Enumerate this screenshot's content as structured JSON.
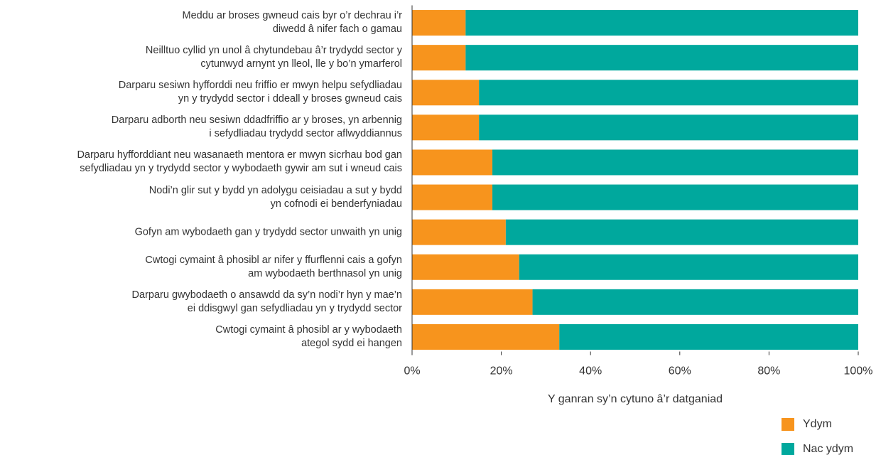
{
  "chart_data": {
    "type": "stacked_bar_horizontal",
    "categories": [
      "Meddu ar broses gwneud cais byr o’r dechrau i’r\ndiwedd â nifer fach o gamau",
      "Neilltuo cyllid yn unol â chytundebau â’r trydydd sector y\ncytunwyd arnynt yn lleol, lle y bo’n ymarferol",
      "Darparu sesiwn hyfforddi neu friffio er mwyn helpu sefydliadau\nyn y trydydd sector i ddeall y broses gwneud cais",
      "Darparu adborth neu sesiwn ddadfriffio ar y broses, yn arbennig\ni sefydliadau trydydd sector aflwyddiannus",
      "Darparu hyfforddiant neu wasanaeth mentora er mwyn sicrhau bod gan\nsefydliadau yn y trydydd sector y wybodaeth gywir am sut i wneud cais",
      "Nodi’n glir sut y bydd yn adolygu ceisiadau a sut y bydd\nyn cofnodi ei benderfyniadau",
      "Gofyn am wybodaeth gan y trydydd sector unwaith yn unig",
      "Cwtogi cymaint â phosibl ar nifer y ffurflenni cais a gofyn\nam wybodaeth berthnasol yn unig",
      "Darparu gwybodaeth o ansawdd da sy’n nodi’r hyn y mae’n\nei ddisgwyl gan sefydliadau yn y trydydd sector",
      "Cwtogi cymaint â phosibl ar y wybodaeth\nategol sydd ei hangen"
    ],
    "series": [
      {
        "name": "Ydym",
        "color": "#f7941d",
        "values": [
          12,
          12,
          15,
          15,
          18,
          18,
          21,
          24,
          27,
          33
        ]
      },
      {
        "name": "Nac ydym",
        "color": "#00a89d",
        "values": [
          88,
          88,
          85,
          85,
          82,
          82,
          79,
          76,
          73,
          67
        ]
      }
    ],
    "x_label": "Y ganran sy’n cytuno â’r datganiad",
    "xlim": [
      0,
      100
    ],
    "xticks": [
      {
        "value": 0,
        "label": "0%"
      },
      {
        "value": 20,
        "label": "20%"
      },
      {
        "value": 40,
        "label": "40%"
      },
      {
        "value": 60,
        "label": "60%"
      },
      {
        "value": 80,
        "label": "80%"
      },
      {
        "value": 100,
        "label": "100%"
      }
    ],
    "legend": "bottom-right"
  }
}
